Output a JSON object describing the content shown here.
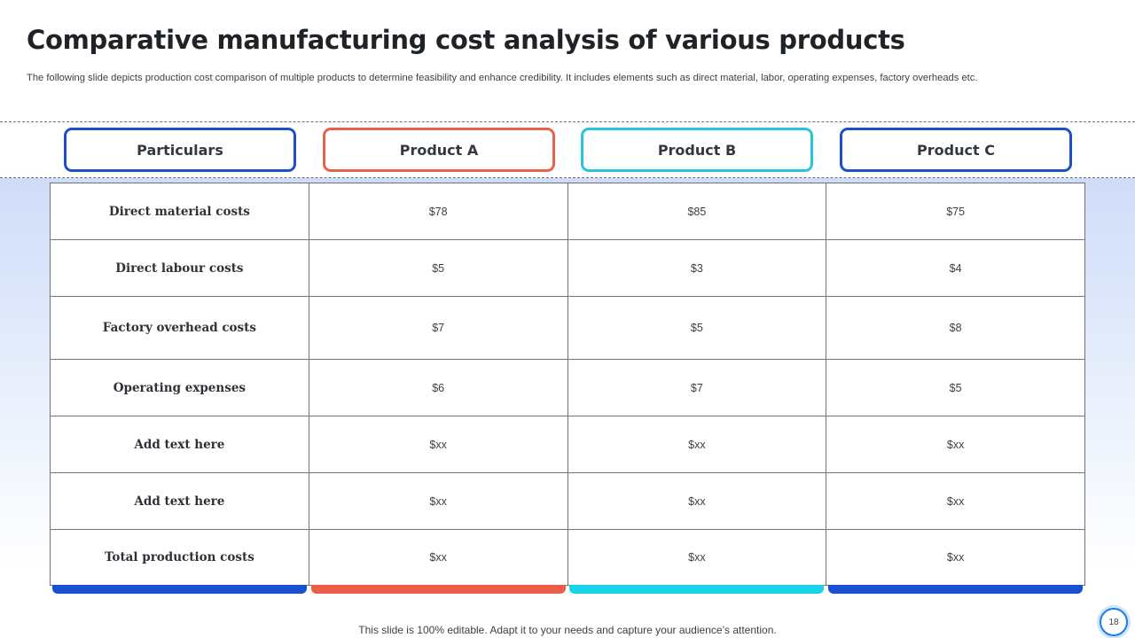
{
  "slide": {
    "title": "Comparative manufacturing cost analysis of various products",
    "subtitle": "The following slide depicts production cost comparison of multiple products to determine feasibility and enhance credibility. It includes elements such as direct material, labor, operating expenses, factory overheads etc.",
    "footer": "This slide is 100% editable. Adapt it to your needs and capture your audience’s attention.",
    "page_number": "18"
  },
  "table": {
    "headers": [
      "Particulars",
      "Product A",
      "Product B",
      "Product C"
    ],
    "header_colors": [
      "#1e4fc7",
      "#e8614a",
      "#27c4dc",
      "#1e4fc7"
    ],
    "rows": [
      {
        "label": "Direct material costs",
        "values": [
          "$78",
          "$85",
          "$75"
        ]
      },
      {
        "label": "Direct labour costs",
        "values": [
          "$5",
          "$3",
          "$4"
        ]
      },
      {
        "label": "Factory overhead costs",
        "values": [
          "$7",
          "$5",
          "$8"
        ]
      },
      {
        "label": "Operating expenses",
        "values": [
          "$6",
          "$7",
          "$5"
        ]
      },
      {
        "label": "Add text here",
        "values": [
          "$xx",
          "$xx",
          "$xx"
        ]
      },
      {
        "label": "Add text here",
        "values": [
          "$xx",
          "$xx",
          "$xx"
        ]
      },
      {
        "label": "Total production costs",
        "values": [
          "$xx",
          "$xx",
          "$xx"
        ]
      }
    ]
  }
}
